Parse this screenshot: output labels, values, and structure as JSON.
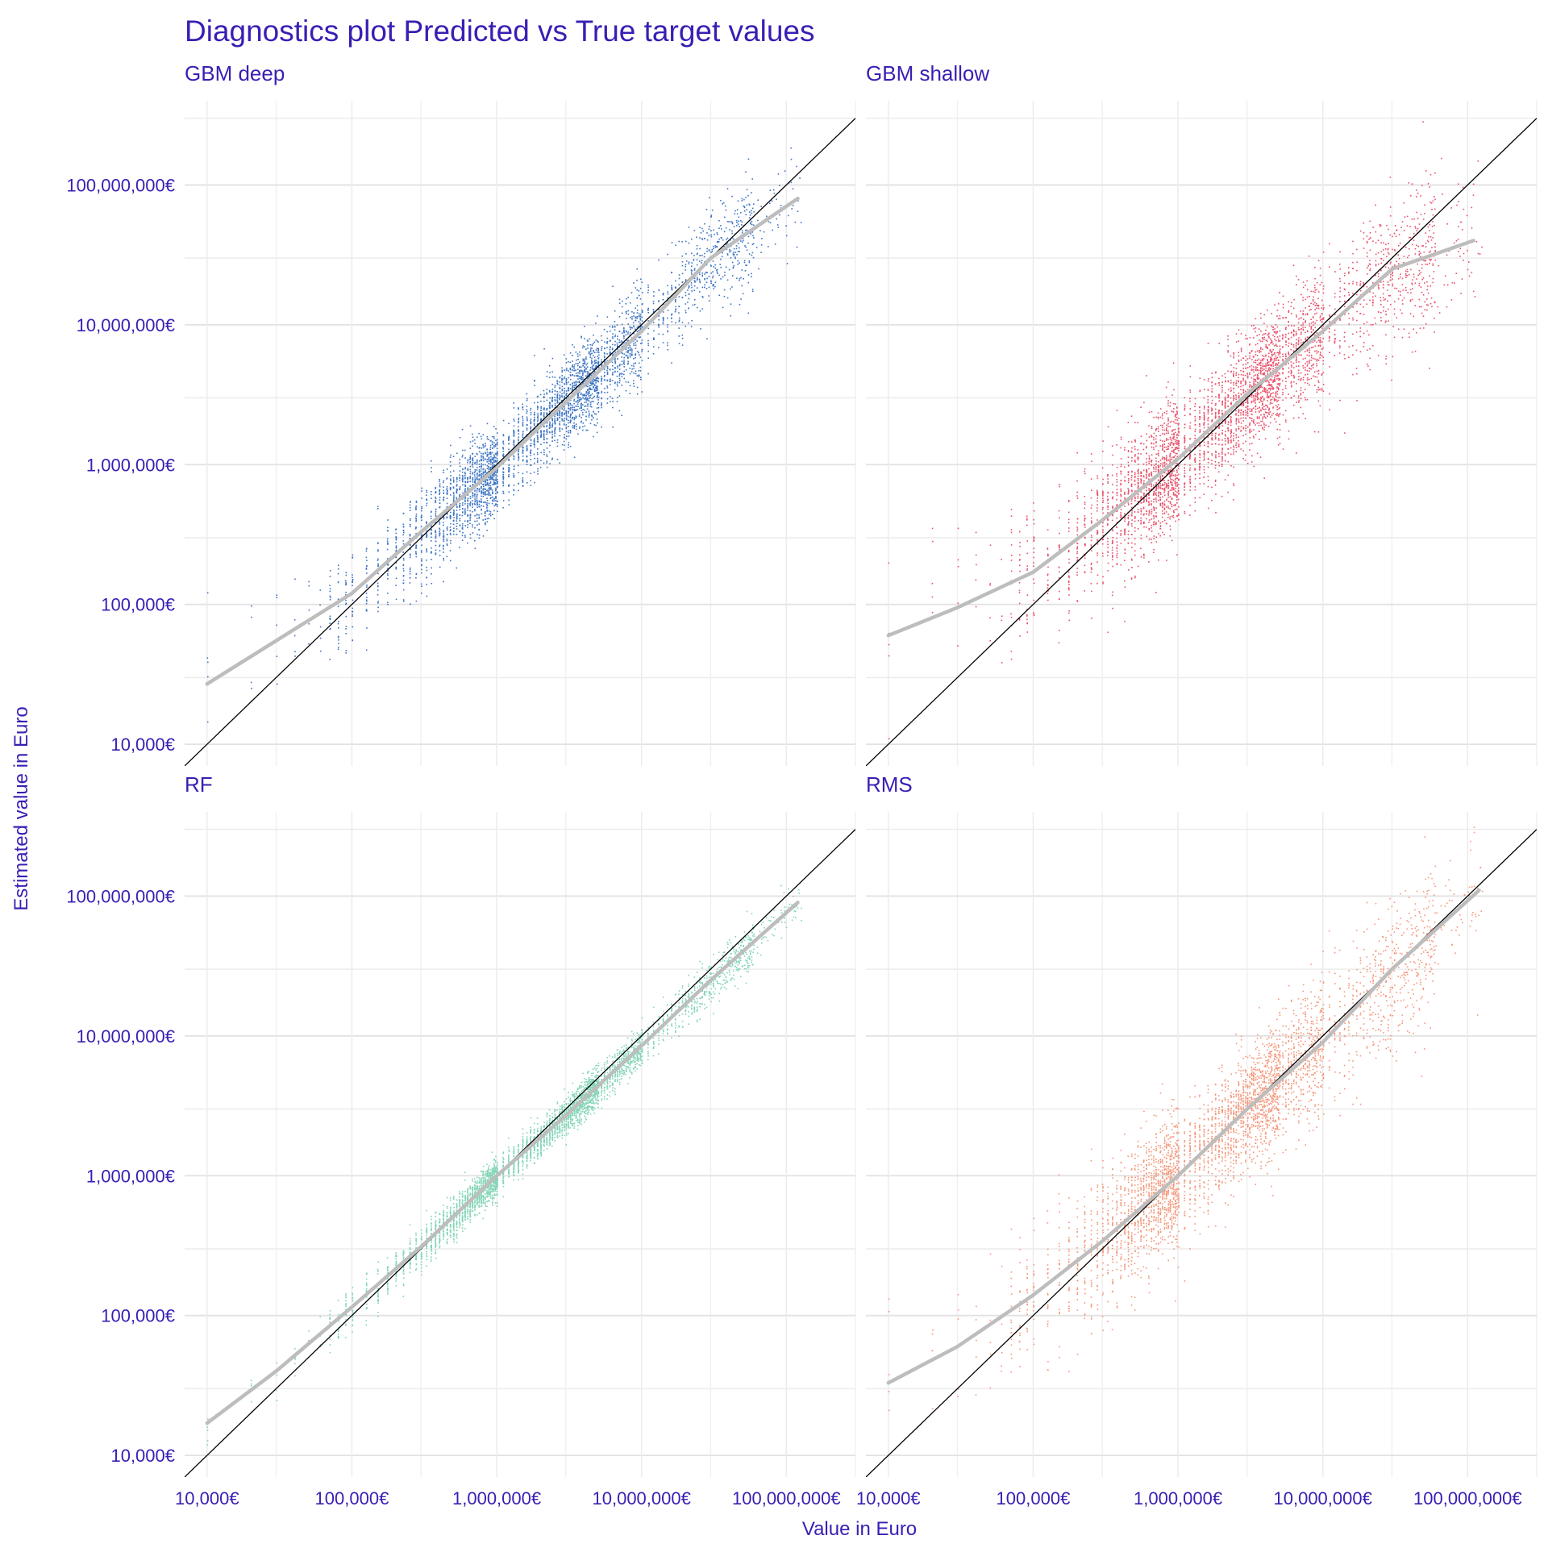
{
  "chart_data": {
    "type": "scatter",
    "title": "Diagnostics plot Predicted vs True target values",
    "xlabel": "Value in Euro",
    "ylabel": "Estimated value in Euro",
    "x_scale": "log10",
    "y_scale": "log10",
    "xlim": [
      7000,
      300000000
    ],
    "ylim": [
      7000,
      400000000
    ],
    "x_ticks": [
      10000,
      100000,
      1000000,
      10000000,
      100000000
    ],
    "x_tick_labels": [
      "10,000€",
      "100,000€",
      "1,000,000€",
      "10,000,000€",
      "100,000,000€"
    ],
    "y_ticks": [
      10000,
      100000,
      1000000,
      10000000,
      100000000
    ],
    "y_tick_labels": [
      "10,000€",
      "100,000€",
      "1,000,000€",
      "10,000,000€",
      "100,000,000€"
    ],
    "grid": true,
    "reference_line": "y = x",
    "colors": {
      "title_text": "#3a1eb4",
      "reference_line": "#000000",
      "smooth_line": "#bdbdbd",
      "grid": "#e6e6e6"
    },
    "panels": [
      {
        "name": "GBM deep",
        "color": "#3d74c4",
        "spread": 0.14,
        "smooth": {
          "x": [
            10000,
            30000,
            100000,
            300000,
            1000000,
            3000000,
            10000000,
            30000000,
            120000000
          ],
          "y": [
            27000,
            55000,
            120000,
            330000,
            950000,
            2800000,
            9000000,
            30000000,
            80000000
          ]
        }
      },
      {
        "name": "GBM shallow",
        "color": "#e8516a",
        "spread": 0.2,
        "smooth": {
          "x": [
            10000,
            30000,
            100000,
            300000,
            1000000,
            3000000,
            10000000,
            30000000,
            110000000
          ],
          "y": [
            60000,
            95000,
            170000,
            400000,
            1100000,
            3200000,
            9000000,
            25000000,
            40000000
          ]
        }
      },
      {
        "name": "RF",
        "color": "#7fd4b4",
        "spread": 0.06,
        "smooth": {
          "x": [
            10000,
            30000,
            100000,
            300000,
            1000000,
            3000000,
            10000000,
            30000000,
            120000000
          ],
          "y": [
            17000,
            40000,
            115000,
            310000,
            1000000,
            2700000,
            8500000,
            25000000,
            90000000
          ]
        }
      },
      {
        "name": "RMS",
        "color": "#f4977a",
        "spread": 0.2,
        "smooth": {
          "x": [
            10000,
            30000,
            100000,
            300000,
            1000000,
            3000000,
            10000000,
            30000000,
            120000000
          ],
          "y": [
            33000,
            60000,
            140000,
            340000,
            1000000,
            3000000,
            9000000,
            30000000,
            110000000
          ]
        }
      }
    ]
  }
}
